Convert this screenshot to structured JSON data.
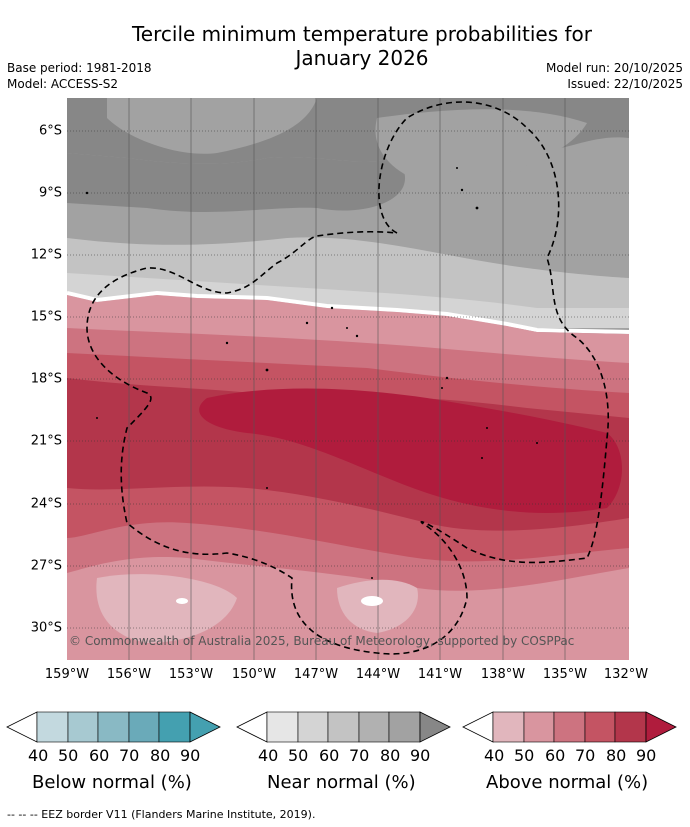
{
  "title": {
    "line1": "Tercile minimum temperature probabilities for",
    "line2": "January 2026"
  },
  "meta": {
    "base_period": "Base period: 1981-2018",
    "model": "Model: ACCESS-S2",
    "model_run": "Model run: 20/10/2025",
    "issued": "Issued: 22/10/2025"
  },
  "map": {
    "lat_labels": [
      "6°S",
      "9°S",
      "12°S",
      "15°S",
      "18°S",
      "21°S",
      "24°S",
      "27°S",
      "30°S"
    ],
    "lon_labels": [
      "159°W",
      "156°W",
      "153°W",
      "150°W",
      "147°W",
      "144°W",
      "141°W",
      "138°W",
      "135°W",
      "132°W"
    ],
    "copyright": "© Commonwealth of Australia 2025, Bureau of Meteorology, supported by COSPPac"
  },
  "legend": {
    "ticks": [
      "40",
      "50",
      "60",
      "70",
      "80",
      "90"
    ],
    "below": {
      "title": "Below normal (%)",
      "colors": [
        "#c3d9df",
        "#a7c9d1",
        "#89b9c4",
        "#6aaab9",
        "#44a0b0"
      ]
    },
    "near": {
      "title": "Near normal (%)",
      "colors": [
        "#e6e6e6",
        "#d4d4d4",
        "#c3c3c3",
        "#b1b1b1",
        "#a2a2a2",
        "#878787"
      ]
    },
    "above": {
      "title": "Above normal (%)",
      "colors": [
        "#e1b6bd",
        "#d9959f",
        "#cd7380",
        "#c45463",
        "#b3364b",
        "#b01c3d"
      ]
    }
  },
  "footnote": "-- -- -- EEZ border V11 (Flanders Marine Institute, 2019)."
}
